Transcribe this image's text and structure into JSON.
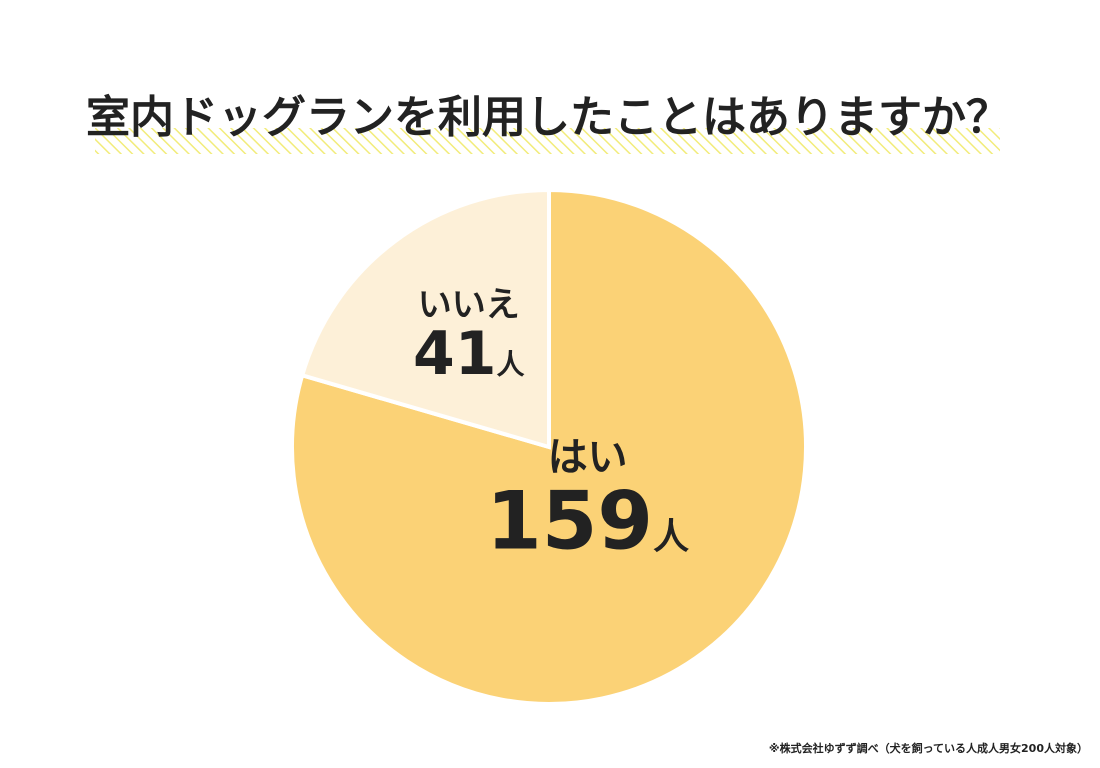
{
  "chart_data": {
    "type": "pie",
    "title": "室内ドッグランを利用したことはありますか？",
    "categories": [
      "はい",
      "いいえ"
    ],
    "values": [
      159,
      41
    ],
    "unit": "人",
    "colors": [
      "#fbd276",
      "#fdf0d8"
    ],
    "footnote": "※株式会社ゆずず調べ（犬を飼っている人成人男女200人対象）"
  }
}
